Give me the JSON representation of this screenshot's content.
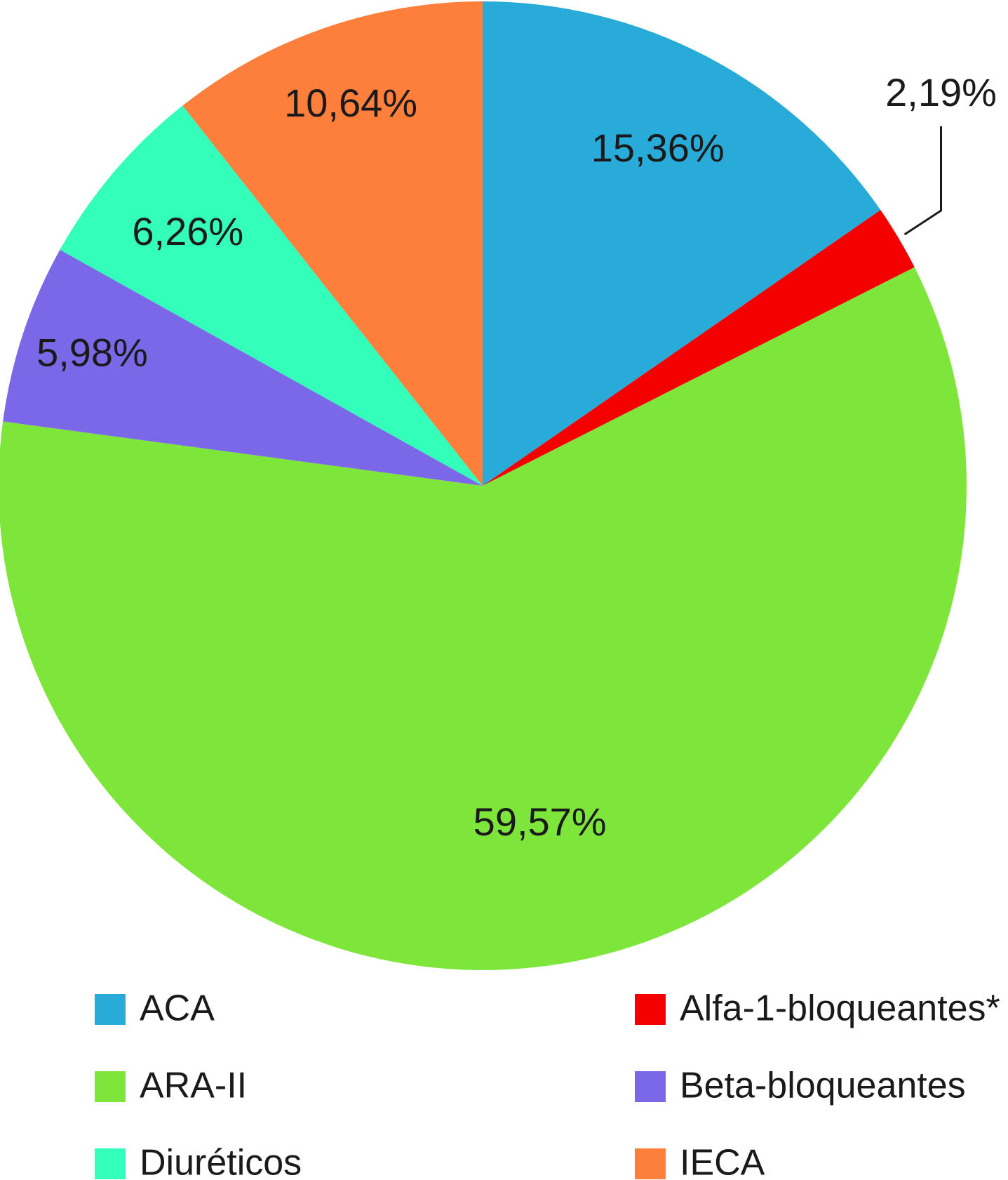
{
  "chart_data": {
    "type": "pie",
    "title": "",
    "start_angle_deg": 0,
    "direction": "clockwise",
    "slices": [
      {
        "label": "ACA",
        "value": 15.36,
        "value_label": "15,36%",
        "color": "#29abd9"
      },
      {
        "label": "Alfa-1-bloqueantes*",
        "value": 2.19,
        "value_label": "2,19%",
        "color": "#f50000"
      },
      {
        "label": "ARA-II",
        "value": 59.57,
        "value_label": "59,57%",
        "color": "#7ee63a"
      },
      {
        "label": "Beta-bloqueantes",
        "value": 5.98,
        "value_label": "5,98%",
        "color": "#7b68e8"
      },
      {
        "label": "Diuréticos",
        "value": 6.26,
        "value_label": "6,26%",
        "color": "#33ffbb"
      },
      {
        "label": "IECA",
        "value": 10.64,
        "value_label": "10,64%",
        "color": "#fe7f3c"
      }
    ],
    "legend": {
      "placement": "bottom",
      "columns": 2,
      "items": [
        "ACA",
        "Alfa-1-bloqueantes*",
        "ARA-II",
        "Beta-bloqueantes",
        "Diuréticos",
        "IECA"
      ]
    }
  }
}
